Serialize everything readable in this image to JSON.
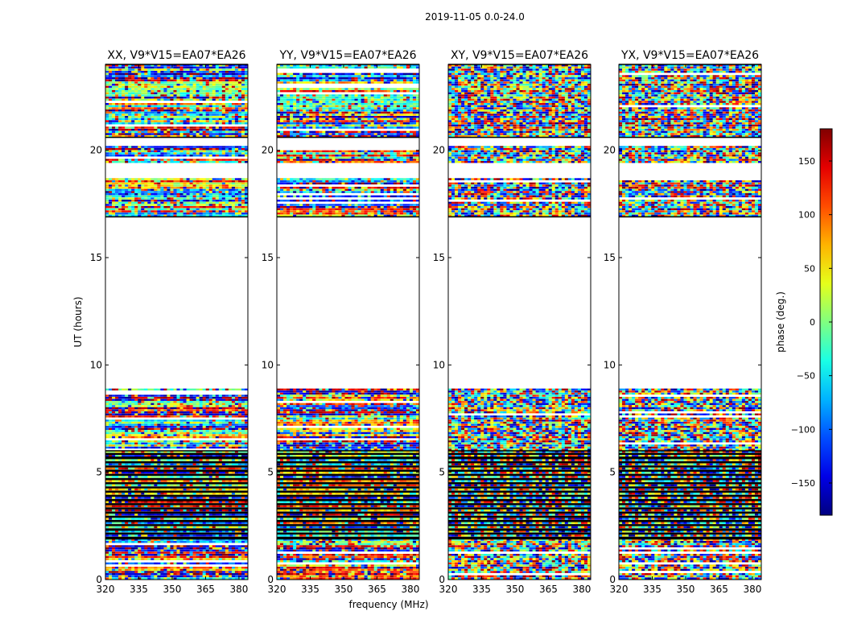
{
  "chart_data": {
    "type": "heatmap",
    "suptitle": "2019-11-05 0.0-24.0",
    "xlabel": "frequency (MHz)",
    "ylabel": "UT (hours)",
    "xlim": [
      320,
      384
    ],
    "ylim": [
      0,
      24
    ],
    "xticks": [
      320,
      335,
      350,
      365,
      380
    ],
    "yticks": [
      0,
      5,
      10,
      15,
      20
    ],
    "panels": [
      {
        "title": "XX, V9*V15=EA07*EA26",
        "pol": "XX"
      },
      {
        "title": "YY, V9*V15=EA07*EA26",
        "pol": "YY"
      },
      {
        "title": "XY, V9*V15=EA07*EA26",
        "pol": "XY"
      },
      {
        "title": "YX, V9*V15=EA07*EA26",
        "pol": "YX"
      }
    ],
    "data_blocks_ut": [
      [
        0.0,
        1.9
      ],
      [
        1.9,
        6.0
      ],
      [
        6.0,
        8.9
      ],
      [
        16.9,
        18.7
      ],
      [
        19.4,
        20.2
      ],
      [
        20.6,
        22.2
      ],
      [
        22.2,
        24.0
      ]
    ],
    "colorbar": {
      "label": "phase (deg.)",
      "range": [
        -180,
        180
      ],
      "ticks": [
        150,
        100,
        50,
        0,
        -50,
        -100,
        -150
      ],
      "tick_labels": [
        "150",
        "100",
        "50",
        "0",
        "−50",
        "−100",
        "−150"
      ],
      "colormap": "jet"
    }
  }
}
